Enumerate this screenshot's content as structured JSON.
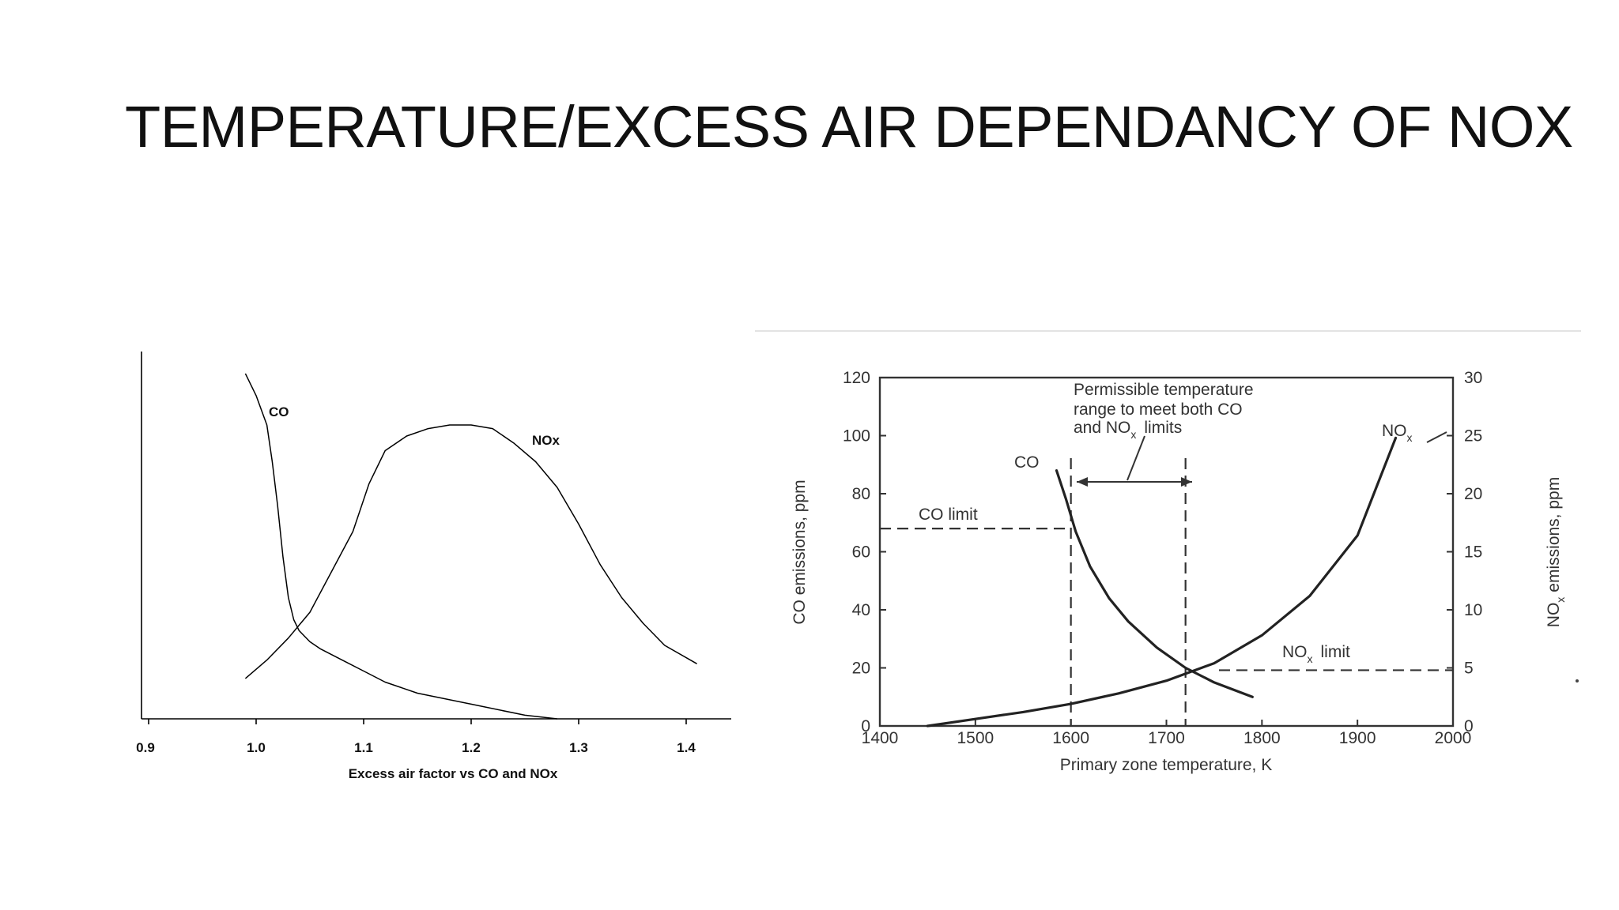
{
  "slide": {
    "title": "TEMPERATURE/EXCESS AIR DEPENDANCY OF NOX"
  },
  "chart_data": [
    {
      "type": "line",
      "title": "",
      "xlabel": "Excess air factor vs CO and NOx",
      "ylabel": "",
      "xlim": [
        0.9,
        1.4
      ],
      "ylim": [
        0,
        100
      ],
      "x_ticks": [
        "0.9",
        "1.0",
        "1.1",
        "1.2",
        "1.3",
        "1.4"
      ],
      "grid": false,
      "series": [
        {
          "name": "CO",
          "x": [
            0.99,
            1.0,
            1.01,
            1.015,
            1.02,
            1.025,
            1.03,
            1.035,
            1.04,
            1.05,
            1.06,
            1.08,
            1.1,
            1.12,
            1.15,
            1.2,
            1.25,
            1.28
          ],
          "y": [
            94,
            88,
            80,
            70,
            58,
            44,
            33,
            27,
            24,
            21,
            19,
            16,
            13,
            10,
            7,
            4,
            1,
            0
          ]
        },
        {
          "name": "NOx",
          "x": [
            0.99,
            1.01,
            1.03,
            1.05,
            1.07,
            1.09,
            1.105,
            1.12,
            1.14,
            1.16,
            1.18,
            1.2,
            1.22,
            1.24,
            1.26,
            1.28,
            1.3,
            1.32,
            1.34,
            1.36,
            1.38,
            1.41
          ],
          "y": [
            11,
            16,
            22,
            29,
            40,
            51,
            64,
            73,
            77,
            79,
            80,
            80,
            79,
            75,
            70,
            63,
            53,
            42,
            33,
            26,
            20,
            15
          ]
        }
      ],
      "annotations": [
        "CO",
        "NOx"
      ]
    },
    {
      "type": "line",
      "title": "",
      "xlabel": "Primary zone temperature, K",
      "ylabel": "CO emissions, ppm",
      "y2label": "NOx emissions, ppm",
      "xlim": [
        1400,
        2000
      ],
      "ylim": [
        0,
        120
      ],
      "y2lim": [
        0,
        30
      ],
      "x_ticks": [
        "1400",
        "1500",
        "1600",
        "1700",
        "1800",
        "1900",
        "2000"
      ],
      "y_ticks": [
        "0",
        "20",
        "40",
        "60",
        "80",
        "100",
        "120"
      ],
      "y2_ticks": [
        "0",
        "5",
        "10",
        "15",
        "20",
        "25",
        "30"
      ],
      "grid": false,
      "series": [
        {
          "name": "CO",
          "axis": "left",
          "x": [
            1585,
            1595,
            1605,
            1620,
            1640,
            1660,
            1690,
            1720,
            1750,
            1790
          ],
          "y": [
            88,
            78,
            67,
            55,
            44,
            36,
            27,
            20,
            15,
            10
          ]
        },
        {
          "name": "NOx",
          "axis": "right",
          "x": [
            1450,
            1500,
            1550,
            1600,
            1650,
            1700,
            1750,
            1800,
            1850,
            1900,
            1940
          ],
          "y": [
            0,
            0.6,
            1.2,
            1.9,
            2.8,
            3.9,
            5.4,
            7.8,
            11.2,
            16.4,
            24.8
          ]
        }
      ],
      "reference_lines": [
        {
          "label": "CO limit",
          "axis": "left",
          "y": 68
        },
        {
          "label": "NOx limit",
          "axis": "right",
          "y": 4.8
        },
        {
          "label": "",
          "axis": "x",
          "x": 1600
        },
        {
          "label": "",
          "axis": "x",
          "x": 1720
        }
      ],
      "annotations": {
        "range_note_line1": "Permissible temperature",
        "range_note_line2": "range to meet both CO",
        "range_note_line3a": "and NO",
        "range_note_line3b": "x",
        "range_note_line3c": "limits",
        "co_curve": "CO",
        "nox_curve_main": "NO",
        "nox_curve_sub": "x",
        "co_limit": "CO limit",
        "nox_limit_main": "NO",
        "nox_limit_sub": "x",
        "nox_limit_suffix": "limit",
        "ylabel2_main": "NO",
        "ylabel2_sub": "x",
        "ylabel2_suffix": "emissions, ppm"
      }
    }
  ]
}
